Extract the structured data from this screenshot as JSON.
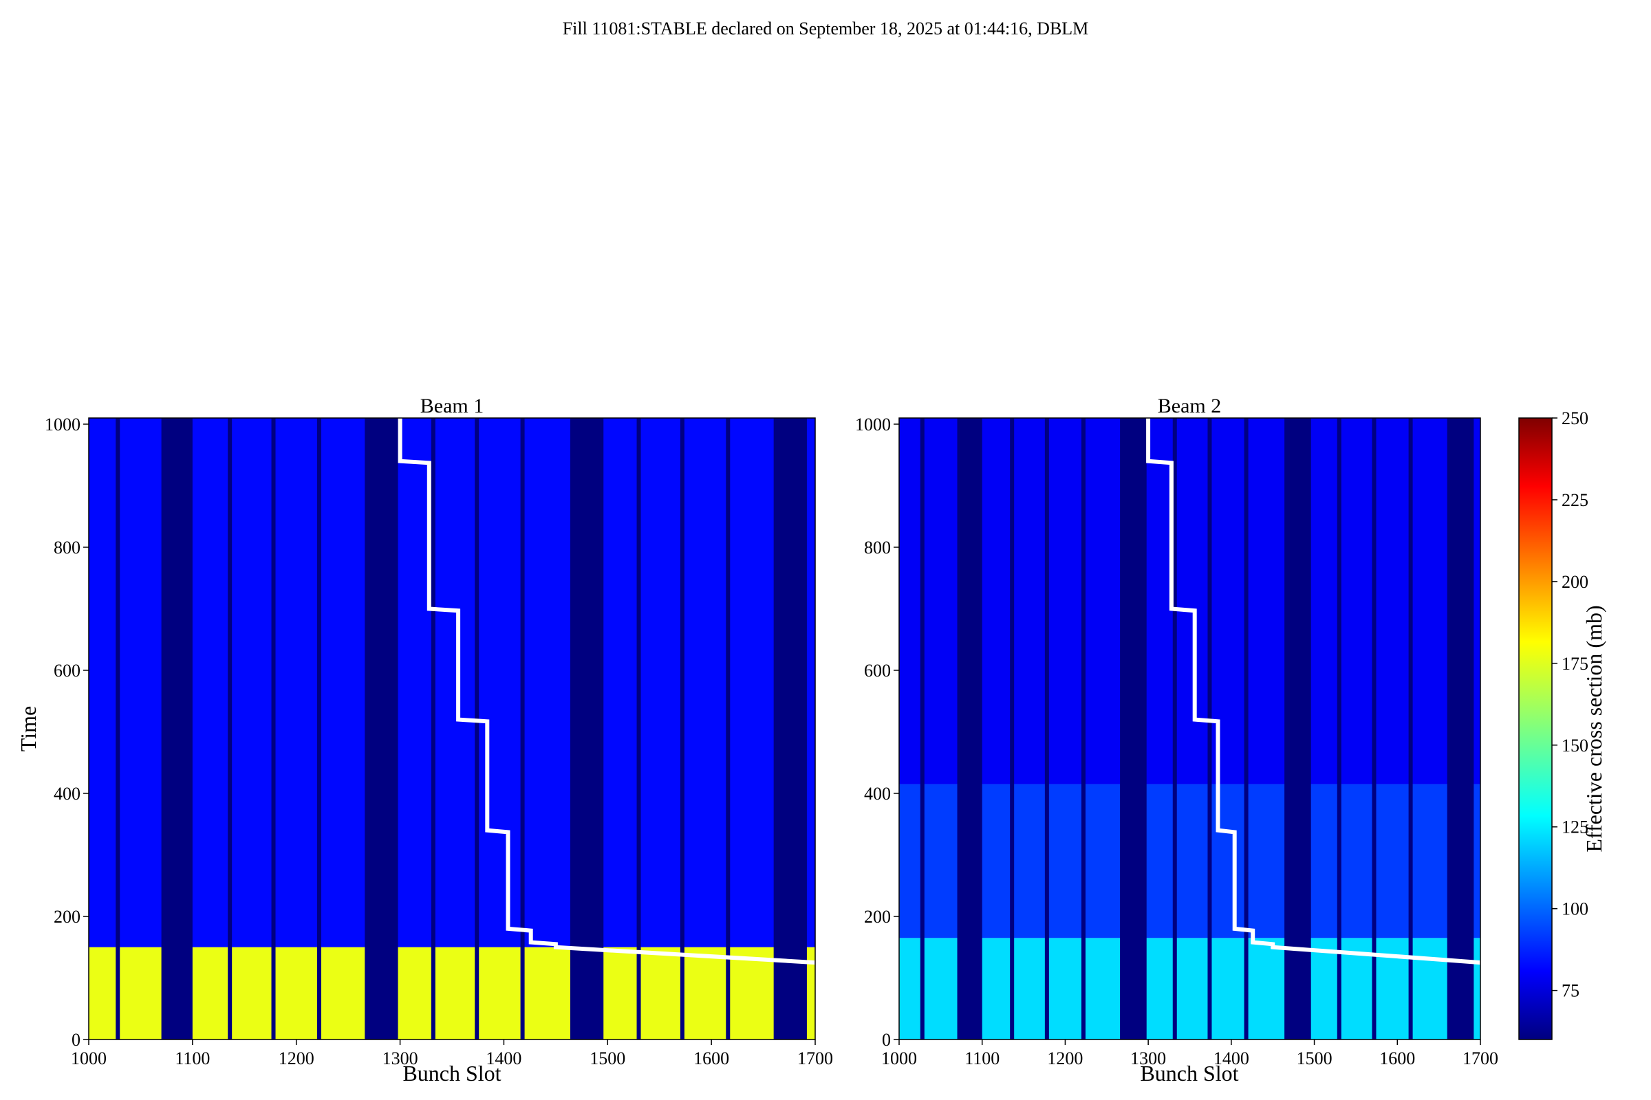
{
  "figure_title": "Fill 11081:STABLE declared on September 18, 2025 at 01:44:16, DBLM",
  "colorbar": {
    "label": "Effective cross section (mb)",
    "ticks": [
      "75",
      "100",
      "125",
      "150",
      "175",
      "200",
      "225",
      "250"
    ],
    "range": [
      60,
      250
    ],
    "colormap": "jet"
  },
  "chart_data": [
    {
      "type": "heatmap",
      "title": "Beam 1",
      "xlabel": "Bunch Slot",
      "ylabel": "Time",
      "xlim": [
        1000,
        1700
      ],
      "ylim": [
        0,
        1010
      ],
      "xticks": [
        "1000",
        "1100",
        "1200",
        "1300",
        "1400",
        "1500",
        "1600",
        "1700"
      ],
      "yticks": [
        "0",
        "200",
        "400",
        "600",
        "800",
        "1000"
      ],
      "empty_slot_ranges": [
        [
          1070,
          1100
        ],
        [
          1266,
          1298
        ],
        [
          1464,
          1496
        ],
        [
          1660,
          1692
        ]
      ],
      "train_gaps": [
        1028,
        1136,
        1178,
        1222,
        1332,
        1374,
        1418,
        1530,
        1572,
        1616
      ],
      "values_by_time": [
        {
          "t_from": 0,
          "t_to": 150,
          "value": 175
        },
        {
          "t_from": 150,
          "t_to": 1010,
          "value": 85
        }
      ],
      "overlay_line": {
        "color": "#ffffff",
        "x": [
          1300,
          1300,
          1328,
          1328,
          1356,
          1356,
          1384,
          1384,
          1404,
          1404,
          1426,
          1426,
          1450,
          1450,
          1700
        ],
        "y": [
          1010,
          940,
          937,
          700,
          697,
          520,
          517,
          340,
          337,
          180,
          177,
          158,
          155,
          150,
          125
        ]
      }
    },
    {
      "type": "heatmap",
      "title": "Beam 2",
      "xlabel": "Bunch Slot",
      "ylabel": "",
      "xlim": [
        1000,
        1700
      ],
      "ylim": [
        0,
        1010
      ],
      "xticks": [
        "1000",
        "1100",
        "1200",
        "1300",
        "1400",
        "1500",
        "1600",
        "1700"
      ],
      "yticks": [
        "0",
        "200",
        "400",
        "600",
        "800",
        "1000"
      ],
      "empty_slot_ranges": [
        [
          1070,
          1100
        ],
        [
          1266,
          1298
        ],
        [
          1464,
          1496
        ],
        [
          1660,
          1692
        ]
      ],
      "train_gaps": [
        1028,
        1136,
        1178,
        1222,
        1332,
        1374,
        1418,
        1530,
        1572,
        1616
      ],
      "values_by_time": [
        {
          "t_from": 0,
          "t_to": 165,
          "value": 125
        },
        {
          "t_from": 165,
          "t_to": 415,
          "value": 95
        },
        {
          "t_from": 415,
          "t_to": 1010,
          "value": 82
        }
      ],
      "overlay_line": {
        "color": "#ffffff",
        "x": [
          1300,
          1300,
          1328,
          1328,
          1356,
          1356,
          1384,
          1384,
          1404,
          1404,
          1426,
          1426,
          1450,
          1450,
          1700
        ],
        "y": [
          1010,
          940,
          937,
          700,
          697,
          520,
          517,
          340,
          337,
          180,
          177,
          158,
          155,
          150,
          125
        ]
      }
    }
  ]
}
